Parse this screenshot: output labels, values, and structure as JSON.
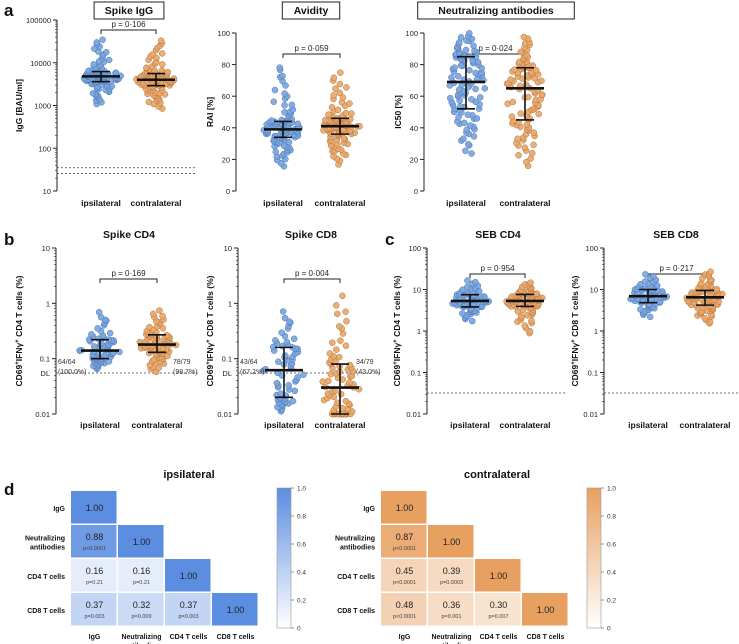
{
  "figure": {
    "group_labels": [
      "ipsilateral",
      "contralateral"
    ],
    "colors": {
      "ipsilateral": "#7aa6e0",
      "contralateral": "#e8a86a",
      "ipsi_edge": "#4a72b0",
      "contra_edge": "#b5723a",
      "text": "#222222"
    },
    "panel_letters": [
      "a",
      "b",
      "c",
      "d"
    ],
    "dl_label": "DL"
  },
  "chart_data": [
    {
      "id": "spike-igg",
      "panel": "a",
      "type": "scatter",
      "title": "Spike IgG",
      "title_boxed": true,
      "ylabel": "IgG [BAU/ml]",
      "scale": "log",
      "ylim": [
        10,
        100000
      ],
      "ticks": [
        10,
        100,
        1000,
        10000,
        100000
      ],
      "tick_labels": [
        "10",
        "100",
        "1000",
        "10000",
        "100000"
      ],
      "pvalue": "p = 0·106",
      "ref_lines": [
        35,
        25.6
      ],
      "groups": [
        {
          "label": "ipsilateral",
          "n": 96,
          "median": 4800,
          "q1": 3600,
          "q3": 6200,
          "min": 900,
          "max": 38000
        },
        {
          "label": "contralateral",
          "n": 96,
          "median": 4000,
          "q1": 2900,
          "q3": 5600,
          "min": 700,
          "max": 33000
        }
      ]
    },
    {
      "id": "avidity",
      "panel": "a",
      "type": "scatter",
      "title": "Avidity",
      "title_boxed": true,
      "ylabel": "RAI [%]",
      "scale": "linear",
      "ylim": [
        0,
        100
      ],
      "ticks": [
        0,
        20,
        40,
        60,
        80,
        100
      ],
      "tick_labels": [
        "0",
        "20",
        "40",
        "60",
        "80",
        "100"
      ],
      "pvalue": "p = 0·059",
      "groups": [
        {
          "label": "ipsilateral",
          "n": 96,
          "median": 39,
          "q1": 34,
          "q3": 44,
          "min": 13,
          "max": 80
        },
        {
          "label": "contralateral",
          "n": 96,
          "median": 41,
          "q1": 36,
          "q3": 46,
          "min": 14,
          "max": 75
        }
      ]
    },
    {
      "id": "neutralizing",
      "panel": "a",
      "type": "scatter",
      "title": "Neutralizing antibodies",
      "title_boxed": true,
      "ylabel": "IC50 [%]",
      "scale": "linear",
      "ylim": [
        0,
        100
      ],
      "ticks": [
        0,
        20,
        40,
        60,
        80,
        100
      ],
      "tick_labels": [
        "0",
        "20",
        "40",
        "60",
        "80",
        "100"
      ],
      "pvalue": "p = 0·024",
      "groups": [
        {
          "label": "ipsilateral",
          "n": 100,
          "median": 69,
          "q1": 52,
          "q3": 85,
          "min": 19,
          "max": 100
        },
        {
          "label": "contralateral",
          "n": 100,
          "median": 65,
          "q1": 45,
          "q3": 78,
          "min": 11,
          "max": 98
        }
      ]
    },
    {
      "id": "spike-cd4",
      "panel": "b",
      "type": "scatter",
      "title": "Spike CD4",
      "title_boxed": false,
      "ylabel_parts": [
        "CD69",
        "+",
        "IFNγ",
        "+",
        " CD4 T cells (%)"
      ],
      "scale": "log",
      "ylim": [
        0.01,
        10
      ],
      "ticks": [
        0.01,
        0.1,
        1,
        10
      ],
      "tick_labels": [
        "0.01",
        "0.1",
        "1",
        "10"
      ],
      "pvalue": "p = 0·169",
      "dl_value": 0.055,
      "counts": [
        {
          "side": "left",
          "text": "64/64",
          "pct": "(100.0%)"
        },
        {
          "side": "right",
          "text": "78/79",
          "pct": "(98.7%)"
        }
      ],
      "groups": [
        {
          "label": "ipsilateral",
          "n": 64,
          "median": 0.14,
          "q1": 0.1,
          "q3": 0.22,
          "min": 0.06,
          "max": 0.72
        },
        {
          "label": "contralateral",
          "n": 79,
          "median": 0.18,
          "q1": 0.13,
          "q3": 0.27,
          "min": 0.05,
          "max": 0.75
        }
      ]
    },
    {
      "id": "spike-cd8",
      "panel": "b",
      "type": "scatter",
      "title": "Spike CD8",
      "title_boxed": false,
      "ylabel_parts": [
        "CD69",
        "+",
        "IFNγ",
        "+",
        " CD8 T cells (%)"
      ],
      "scale": "log",
      "ylim": [
        0.01,
        10
      ],
      "ticks": [
        0.01,
        0.1,
        1,
        10
      ],
      "tick_labels": [
        "0.01",
        "0.1",
        "1",
        "10"
      ],
      "pvalue": "p = 0·004",
      "dl_value": 0.055,
      "counts": [
        {
          "side": "left",
          "text": "43/64",
          "pct": "(67.2%)"
        },
        {
          "side": "right",
          "text": "34/79",
          "pct": "(43.0%)"
        }
      ],
      "groups": [
        {
          "label": "ipsilateral",
          "n": 64,
          "median": 0.062,
          "q1": 0.02,
          "q3": 0.16,
          "min": 0.01,
          "max": 0.75
        },
        {
          "label": "contralateral",
          "n": 79,
          "median": 0.03,
          "q1": 0.01,
          "q3": 0.08,
          "min": 0.01,
          "max": 1.4
        }
      ]
    },
    {
      "id": "seb-cd4",
      "panel": "c",
      "type": "scatter",
      "title": "SEB CD4",
      "title_boxed": false,
      "ylabel_parts": [
        "CD69",
        "+",
        "IFNγ",
        "+",
        " CD4 T cells (%)"
      ],
      "scale": "log",
      "ylim": [
        0.01,
        100
      ],
      "ticks": [
        0.01,
        0.1,
        1,
        10,
        100
      ],
      "tick_labels": [
        "0.01",
        "0.1",
        "1",
        "10",
        "100"
      ],
      "pvalue": "p = 0·954",
      "ref_lines": [
        0.032
      ],
      "groups": [
        {
          "label": "ipsilateral",
          "n": 64,
          "median": 5.3,
          "q1": 3.8,
          "q3": 7.5,
          "min": 1.5,
          "max": 17
        },
        {
          "label": "contralateral",
          "n": 79,
          "median": 5.3,
          "q1": 3.9,
          "q3": 7.6,
          "min": 0.7,
          "max": 15
        }
      ]
    },
    {
      "id": "seb-cd8",
      "panel": "c",
      "type": "scatter",
      "title": "SEB CD8",
      "title_boxed": false,
      "ylabel_parts": [
        "CD69",
        "+",
        "IFNγ",
        "+",
        " CD8 T cells (%)"
      ],
      "scale": "log",
      "ylim": [
        0.01,
        100
      ],
      "ticks": [
        0.01,
        0.1,
        1,
        10,
        100
      ],
      "tick_labels": [
        "0.01",
        "0.1",
        "1",
        "10",
        "100"
      ],
      "pvalue": "p = 0·217",
      "ref_lines": [
        0.032
      ],
      "groups": [
        {
          "label": "ipsilateral",
          "n": 64,
          "median": 6.9,
          "q1": 4.8,
          "q3": 10,
          "min": 1.9,
          "max": 24
        },
        {
          "label": "contralateral",
          "n": 79,
          "median": 6.5,
          "q1": 4.2,
          "q3": 9.5,
          "min": 1.3,
          "max": 28
        }
      ]
    },
    {
      "id": "corr-ipsi",
      "panel": "d",
      "type": "heatmap",
      "title": "ipsilateral",
      "color": "#5b8de0",
      "labels": [
        "IgG",
        "Neutralizing antibodies",
        "CD4 T cells",
        "CD8 T cells"
      ],
      "row_labels": [
        [
          "IgG"
        ],
        [
          "Neutralizing",
          "antibodies"
        ],
        [
          "CD4 T cells"
        ],
        [
          "CD8 T cells"
        ]
      ],
      "col_labels": [
        [
          "IgG"
        ],
        [
          "Neutralizing",
          "antibodies"
        ],
        [
          "CD4 T cells"
        ],
        [
          "CD8 T cells"
        ]
      ],
      "cells": [
        [
          {
            "v": "1.00"
          }
        ],
        [
          {
            "v": "0.88",
            "p": "p<0.0001"
          },
          {
            "v": "1.00"
          }
        ],
        [
          {
            "v": "0.16",
            "p": "p=0.21"
          },
          {
            "v": "0.16",
            "p": "p=0.21"
          },
          {
            "v": "1.00"
          }
        ],
        [
          {
            "v": "0.37",
            "p": "p=0.003"
          },
          {
            "v": "0.32",
            "p": "p=0.009"
          },
          {
            "v": "0.37",
            "p": "p=0.003"
          },
          {
            "v": "1.00"
          }
        ]
      ],
      "colorbar_ticks": [
        "0",
        "0.2",
        "0.4",
        "0.6",
        "0.8",
        "1.0"
      ]
    },
    {
      "id": "corr-contra",
      "panel": "d",
      "type": "heatmap",
      "title": "contralateral",
      "color": "#e8a060",
      "labels": [
        "IgG",
        "Neutralizing antibodies",
        "CD4 T cells",
        "CD8 T cells"
      ],
      "row_labels": [
        [
          "IgG"
        ],
        [
          "Neutralizing",
          "antibodies"
        ],
        [
          "CD4 T cells"
        ],
        [
          "CD8 T cells"
        ]
      ],
      "col_labels": [
        [
          "IgG"
        ],
        [
          "Neutralizing",
          "antibodies"
        ],
        [
          "CD4 T cells"
        ],
        [
          "CD8 T cells"
        ]
      ],
      "cells": [
        [
          {
            "v": "1.00"
          }
        ],
        [
          {
            "v": "0.87",
            "p": "p<0.0001"
          },
          {
            "v": "1.00"
          }
        ],
        [
          {
            "v": "0.45",
            "p": "p<0.0001"
          },
          {
            "v": "0.39",
            "p": "p=0.0003"
          },
          {
            "v": "1.00"
          }
        ],
        [
          {
            "v": "0.48",
            "p": "p<0.0001"
          },
          {
            "v": "0.36",
            "p": "p=0.001"
          },
          {
            "v": "0.30",
            "p": "p=0.007"
          },
          {
            "v": "1.00"
          }
        ]
      ],
      "colorbar_ticks": [
        "0",
        "0.2",
        "0.4",
        "0.6",
        "0.8",
        "1.0"
      ]
    }
  ]
}
